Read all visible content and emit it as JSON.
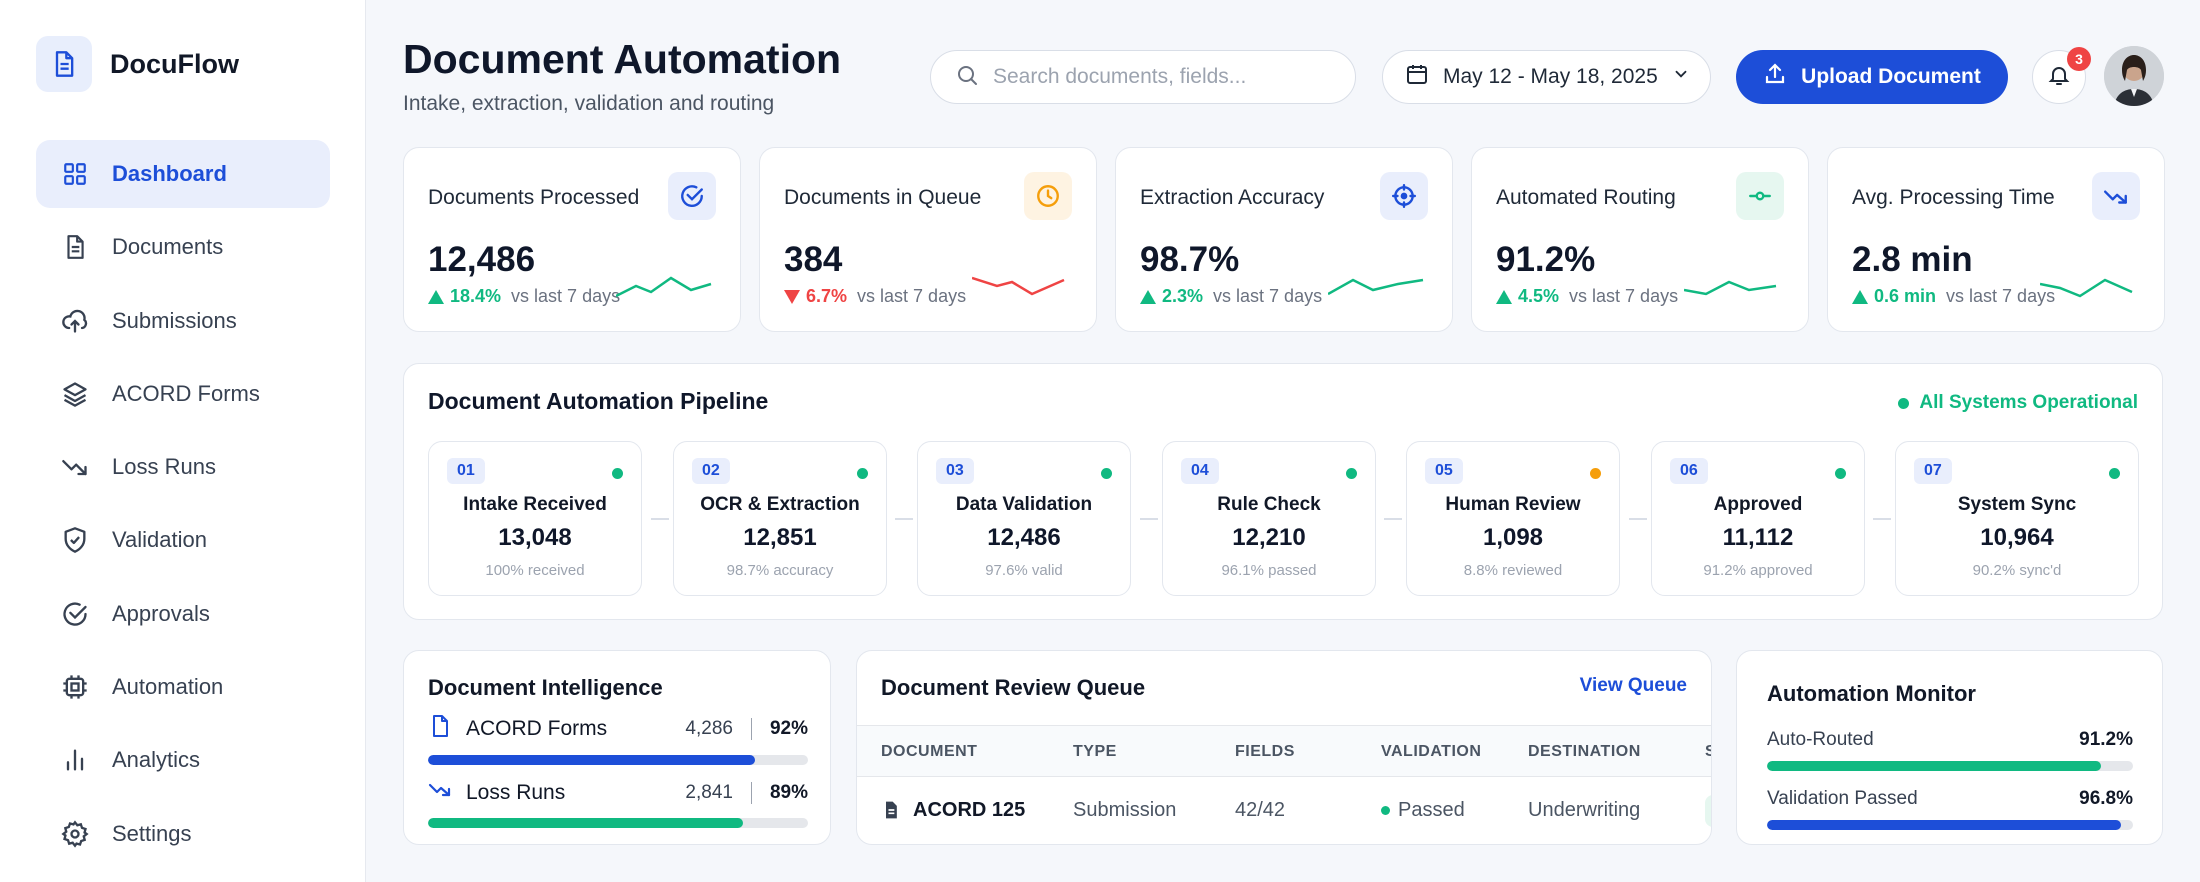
{
  "app": {
    "name": "DocuFlow",
    "brand_color": "#1d4ed8"
  },
  "sidebar": {
    "items": [
      {
        "label": "Dashboard",
        "icon": "grid-icon",
        "active": true
      },
      {
        "label": "Documents",
        "icon": "document-icon"
      },
      {
        "label": "Submissions",
        "icon": "cloud-upload-icon"
      },
      {
        "label": "ACORD Forms",
        "icon": "layers-icon"
      },
      {
        "label": "Loss Runs",
        "icon": "trend-down-icon"
      },
      {
        "label": "Validation",
        "icon": "shield-check-icon"
      },
      {
        "label": "Approvals",
        "icon": "check-circle-icon"
      },
      {
        "label": "Automation",
        "icon": "chip-icon"
      },
      {
        "label": "Analytics",
        "icon": "bar-chart-icon"
      },
      {
        "label": "Settings",
        "icon": "gear-icon"
      }
    ]
  },
  "header": {
    "title": "Document Automation",
    "subtitle": "Intake, extraction, validation and routing",
    "search_placeholder": "Search documents, fields...",
    "date_range": "May 12 - May 18, 2025",
    "upload_label": "Upload Document",
    "notification_count": "3"
  },
  "kpis": [
    {
      "label": "Documents Processed",
      "value": "12,486",
      "delta": "18.4%",
      "direction": "up",
      "compare": "vs last 7 days",
      "icon": "check-badge-icon",
      "icon_color": "#1d4ed8",
      "icon_bg": "#e9eefc",
      "spark_color": "#10b981"
    },
    {
      "label": "Documents in Queue",
      "value": "384",
      "delta": "6.7%",
      "direction": "down",
      "compare": "vs last 7 days",
      "icon": "clock-icon",
      "icon_color": "#f59e0b",
      "icon_bg": "#fef3e2",
      "spark_color": "#ef4444"
    },
    {
      "label": "Extraction Accuracy",
      "value": "98.7%",
      "delta": "2.3%",
      "direction": "up",
      "compare": "vs last 7 days",
      "icon": "target-icon",
      "icon_color": "#1d4ed8",
      "icon_bg": "#e9eefc",
      "spark_color": "#10b981"
    },
    {
      "label": "Automated Routing",
      "value": "91.2%",
      "delta": "4.5%",
      "direction": "up",
      "compare": "vs last 7 days",
      "icon": "route-icon",
      "icon_color": "#10b981",
      "icon_bg": "#e6f7f0",
      "spark_color": "#10b981"
    },
    {
      "label": "Avg. Processing Time",
      "value": "2.8 min",
      "delta": "0.6 min",
      "direction": "up",
      "compare": "vs last 7 days",
      "icon": "trend-down-icon",
      "icon_color": "#1d4ed8",
      "icon_bg": "#e9eefc",
      "spark_color": "#10b981"
    }
  ],
  "pipeline": {
    "title": "Document Automation Pipeline",
    "status": "All Systems Operational",
    "stages": [
      {
        "num": "01",
        "name": "Intake Received",
        "value": "13,048",
        "sub": "100% received",
        "status_color": "#10b981"
      },
      {
        "num": "02",
        "name": "OCR & Extraction",
        "value": "12,851",
        "sub": "98.7% accuracy",
        "status_color": "#10b981"
      },
      {
        "num": "03",
        "name": "Data Validation",
        "value": "12,486",
        "sub": "97.6% valid",
        "status_color": "#10b981"
      },
      {
        "num": "04",
        "name": "Rule Check",
        "value": "12,210",
        "sub": "96.1% passed",
        "status_color": "#10b981"
      },
      {
        "num": "05",
        "name": "Human Review",
        "value": "1,098",
        "sub": "8.8% reviewed",
        "status_color": "#f59e0b"
      },
      {
        "num": "06",
        "name": "Approved",
        "value": "11,112",
        "sub": "91.2% approved",
        "status_color": "#10b981"
      },
      {
        "num": "07",
        "name": "System Sync",
        "value": "10,964",
        "sub": "90.2% sync'd",
        "status_color": "#10b981"
      }
    ]
  },
  "intelligence": {
    "title": "Document Intelligence",
    "rows": [
      {
        "label": "ACORD Forms",
        "count": "4,286",
        "pct": "92%",
        "fill": 0.86,
        "color": "#1d4ed8",
        "icon": "document-icon"
      },
      {
        "label": "Loss Runs",
        "count": "2,841",
        "pct": "89%",
        "fill": 0.83,
        "color": "#10b981",
        "icon": "trend-down-icon"
      }
    ]
  },
  "queue": {
    "title": "Document Review Queue",
    "link": "View Queue",
    "columns": [
      "DOCUMENT",
      "TYPE",
      "FIELDS",
      "VALIDATION",
      "DESTINATION",
      "S"
    ],
    "rows": [
      {
        "document": "ACORD 125",
        "type": "Submission",
        "fields": "42/42",
        "validation": "Passed",
        "destination": "Underwriting"
      }
    ]
  },
  "monitor": {
    "title": "Automation Monitor",
    "rows": [
      {
        "label": "Auto-Routed",
        "value": "91.2%",
        "fill": 0.912,
        "color": "#10b981"
      },
      {
        "label": "Validation Passed",
        "value": "96.8%",
        "fill": 0.968,
        "color": "#1d4ed8"
      }
    ]
  }
}
